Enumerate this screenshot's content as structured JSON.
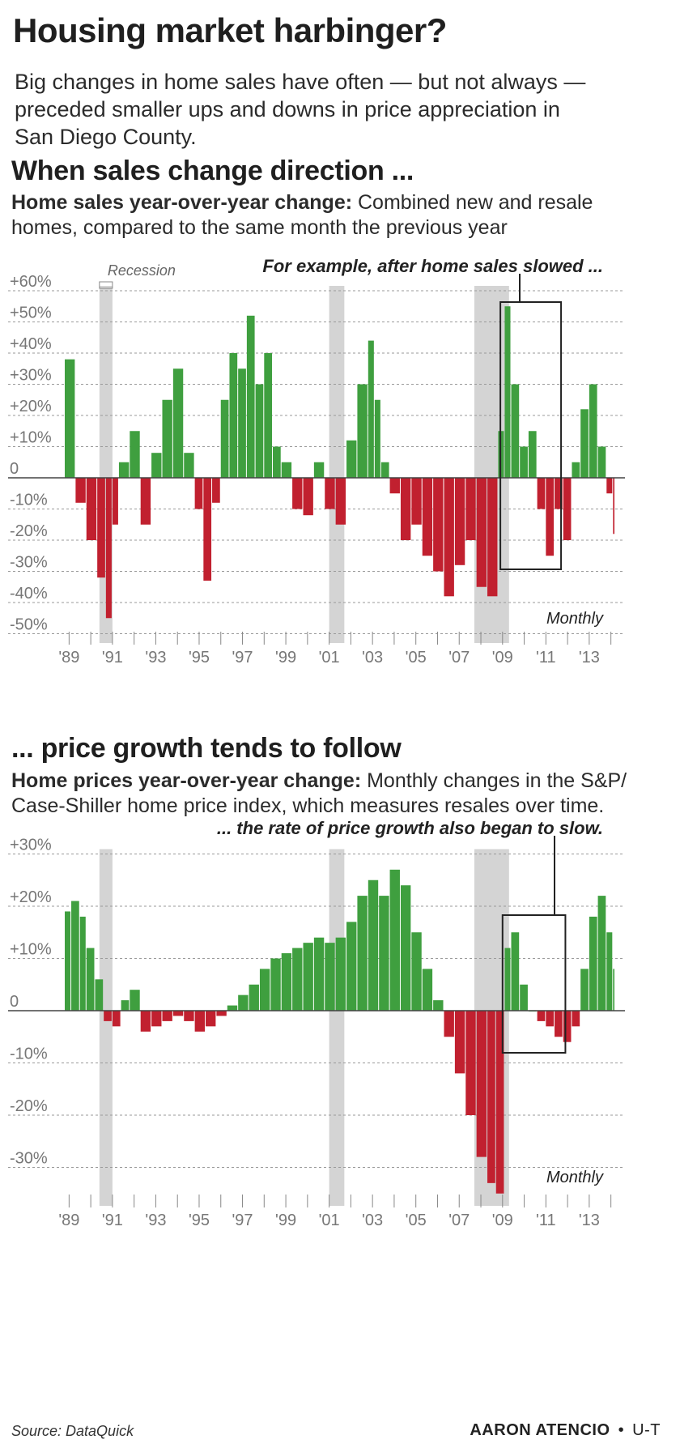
{
  "title": "Housing market harbinger?",
  "subtitle": "Big changes in home sales have often — but not always — preceded smaller ups and downs in price appreciation in San Diego County.",
  "source": "Source: DataQuick",
  "credit_name": "AARON ATENCIO",
  "credit_sep": "•",
  "credit_org": "U-T",
  "colors": {
    "positive": "#3f9f3f",
    "negative": "#c1202f",
    "recession": "#d4d4d4",
    "grid": "#9a9a9a",
    "text": "#555555"
  },
  "chart_data": [
    {
      "type": "bar",
      "section_title": "When sales change direction ...",
      "desc_bold": "Home sales year-over-year change:",
      "desc_rest": "Combined new and resale homes, compared to the same month the previous year",
      "frequency_label": "Monthly",
      "recession_label": "Recession",
      "annotation": "For example, after home sales slowed ...",
      "ylim": [
        -50,
        60
      ],
      "yticks": [
        {
          "v": 60,
          "label": "+60%"
        },
        {
          "v": 50,
          "label": "+50%"
        },
        {
          "v": 40,
          "label": "+40%"
        },
        {
          "v": 30,
          "label": "+30%"
        },
        {
          "v": 20,
          "label": "+20%"
        },
        {
          "v": 10,
          "label": "+10%"
        },
        {
          "v": 0,
          "label": "0"
        },
        {
          "v": -10,
          "label": "-10%"
        },
        {
          "v": -20,
          "label": "-20%"
        },
        {
          "v": -30,
          "label": "-30%"
        },
        {
          "v": -40,
          "label": "-40%"
        },
        {
          "v": -50,
          "label": "-50%"
        }
      ],
      "xlim": [
        1989,
        2014.4
      ],
      "xtick_labels": [
        "'89",
        "'91",
        "'93",
        "'95",
        "'97",
        "'99",
        "'01",
        "'03",
        "'05",
        "'07",
        "'09",
        "'11",
        "'13"
      ],
      "recessions": [
        [
          1990.6,
          1991.2
        ],
        [
          2001.2,
          2001.9
        ],
        [
          2007.9,
          2009.5
        ]
      ],
      "highlight_box": [
        2009.1,
        2011.9
      ],
      "series": [
        {
          "x": [
            1989.0,
            1989.5,
            1990.0,
            1990.5,
            1990.9,
            1991.2,
            1991.5,
            1992.0,
            1992.5,
            1993.0,
            1993.5,
            1994.0,
            1994.5,
            1995.0,
            1995.4,
            1995.8,
            1996.2,
            1996.6,
            1997.0,
            1997.4,
            1997.8,
            1998.2,
            1998.6,
            1999.0,
            1999.5,
            2000.0,
            2000.5,
            2001.0,
            2001.5,
            2002.0,
            2002.5,
            2003.0,
            2003.3,
            2003.6,
            2004.0,
            2004.5,
            2005.0,
            2005.5,
            2006.0,
            2006.5,
            2007.0,
            2007.5,
            2008.0,
            2008.5,
            2009.0,
            2009.3,
            2009.6,
            2010.0,
            2010.4,
            2010.8,
            2011.2,
            2011.6,
            2012.0,
            2012.4,
            2012.8,
            2013.2,
            2013.6,
            2014.0,
            2014.3
          ],
          "values": [
            38,
            -8,
            -20,
            -32,
            -45,
            -15,
            5,
            15,
            -15,
            8,
            25,
            35,
            8,
            -10,
            -33,
            -8,
            25,
            40,
            35,
            52,
            30,
            40,
            10,
            5,
            -10,
            -12,
            5,
            -10,
            -15,
            12,
            30,
            44,
            25,
            5,
            -5,
            -20,
            -15,
            -25,
            -30,
            -38,
            -28,
            -20,
            -35,
            -38,
            15,
            55,
            30,
            10,
            15,
            -10,
            -25,
            -10,
            -20,
            5,
            22,
            30,
            10,
            -5,
            -18
          ]
        }
      ]
    },
    {
      "type": "bar",
      "section_title": "... price growth tends to follow",
      "desc_bold": "Home prices year-over-year change:",
      "desc_rest": "Monthly changes in the S&P/ Case-Shiller home price index, which measures resales over time.",
      "frequency_label": "Monthly",
      "annotation": "... the rate of price growth also began to slow.",
      "ylim": [
        -35,
        30
      ],
      "yticks": [
        {
          "v": 30,
          "label": "+30%"
        },
        {
          "v": 20,
          "label": "+20%"
        },
        {
          "v": 10,
          "label": "+10%"
        },
        {
          "v": 0,
          "label": "0"
        },
        {
          "v": -10,
          "label": "-10%"
        },
        {
          "v": -20,
          "label": "-20%"
        },
        {
          "v": -30,
          "label": "-30%"
        }
      ],
      "xlim": [
        1989,
        2014.4
      ],
      "xtick_labels": [
        "'89",
        "'91",
        "'93",
        "'95",
        "'97",
        "'99",
        "'01",
        "'03",
        "'05",
        "'07",
        "'09",
        "'11",
        "'13"
      ],
      "recessions": [
        [
          1990.6,
          1991.2
        ],
        [
          2001.2,
          2001.9
        ],
        [
          2007.9,
          2009.5
        ]
      ],
      "highlight_box": [
        2009.2,
        2012.1
      ],
      "series": [
        {
          "x": [
            1989.0,
            1989.3,
            1989.7,
            1990.0,
            1990.4,
            1990.8,
            1991.2,
            1991.6,
            1992.0,
            1992.5,
            1993.0,
            1993.5,
            1994.0,
            1994.5,
            1995.0,
            1995.5,
            1996.0,
            1996.5,
            1997.0,
            1997.5,
            1998.0,
            1998.5,
            1999.0,
            1999.5,
            2000.0,
            2000.5,
            2001.0,
            2001.5,
            2002.0,
            2002.5,
            2003.0,
            2003.5,
            2004.0,
            2004.5,
            2005.0,
            2005.5,
            2006.0,
            2006.5,
            2007.0,
            2007.5,
            2008.0,
            2008.5,
            2008.9,
            2009.3,
            2009.6,
            2010.0,
            2010.4,
            2010.8,
            2011.2,
            2011.6,
            2012.0,
            2012.4,
            2012.8,
            2013.2,
            2013.6,
            2014.0,
            2014.3
          ],
          "values": [
            19,
            21,
            18,
            12,
            6,
            -2,
            -3,
            2,
            4,
            -4,
            -3,
            -2,
            -1,
            -2,
            -4,
            -3,
            -1,
            1,
            3,
            5,
            8,
            10,
            11,
            12,
            13,
            14,
            13,
            14,
            17,
            22,
            25,
            22,
            27,
            24,
            15,
            8,
            2,
            -5,
            -12,
            -20,
            -28,
            -33,
            -35,
            12,
            15,
            5,
            0,
            -2,
            -3,
            -5,
            -6,
            -3,
            8,
            18,
            22,
            15,
            8
          ]
        }
      ]
    }
  ]
}
